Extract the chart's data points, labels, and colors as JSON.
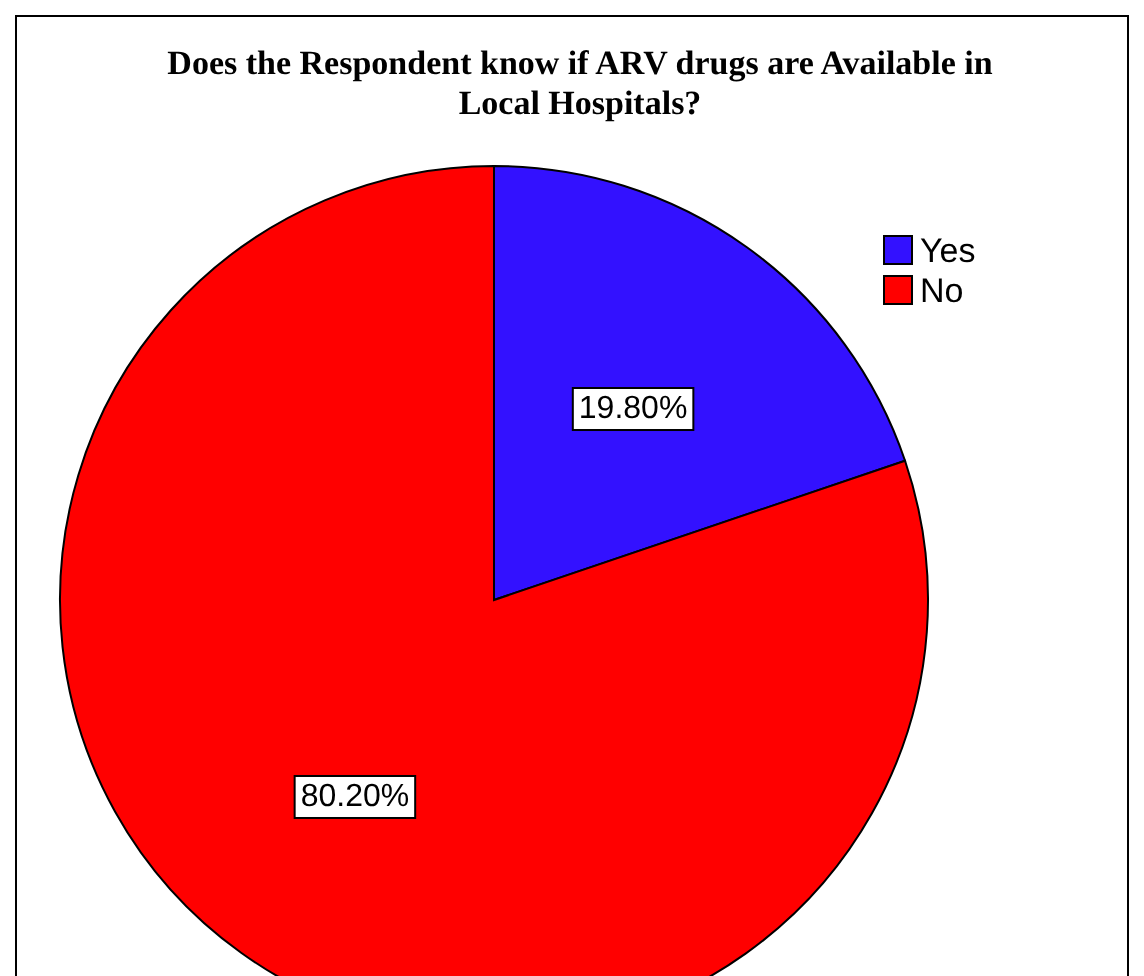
{
  "chart_data": {
    "type": "pie",
    "title": "Does the Respondent  know if ARV drugs are Available in Local Hospitals?",
    "categories": [
      "Yes",
      "No"
    ],
    "values": [
      19.8,
      80.2
    ],
    "colors": [
      "#3311ff",
      "#ff0000"
    ],
    "value_labels": [
      "19.80%",
      "80.20%"
    ],
    "legend": "top right"
  }
}
